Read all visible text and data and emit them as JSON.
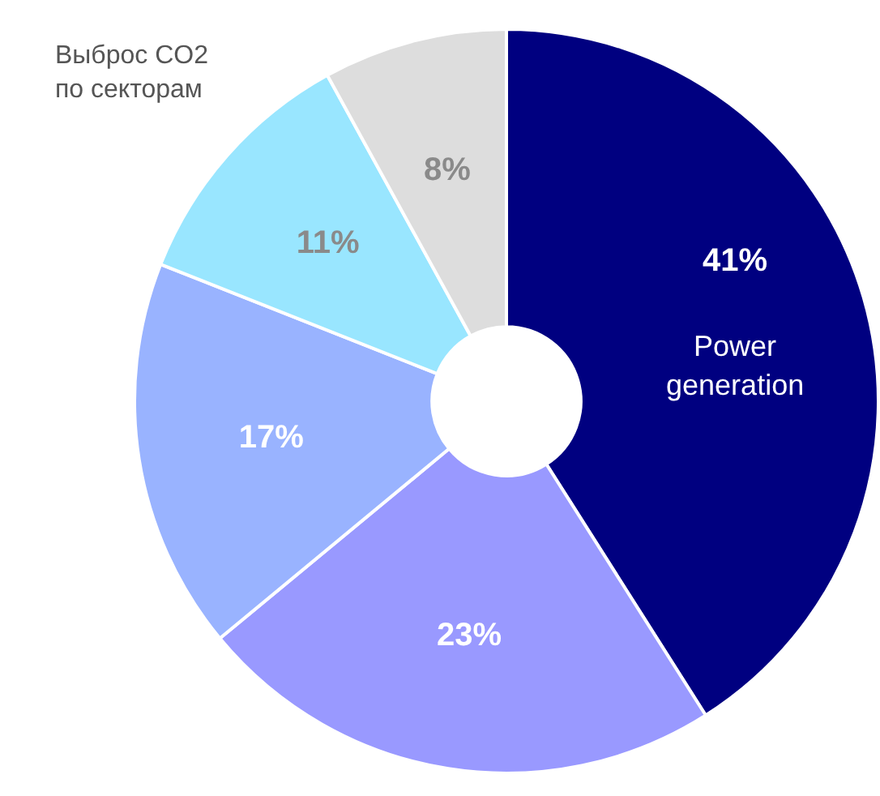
{
  "chart_data": {
    "type": "donut",
    "title": "Выброс CO2 по секторам",
    "categories": [
      "Power generation",
      null,
      null,
      null,
      null
    ],
    "values": [
      41,
      23,
      17,
      11,
      8
    ],
    "value_labels": [
      "41%",
      "23%",
      "17%",
      "11%",
      "8%"
    ],
    "colors": [
      "#000080",
      "#9999ff",
      "#99b3ff",
      "#99e6ff",
      "#dddddd"
    ],
    "legend": false
  }
}
